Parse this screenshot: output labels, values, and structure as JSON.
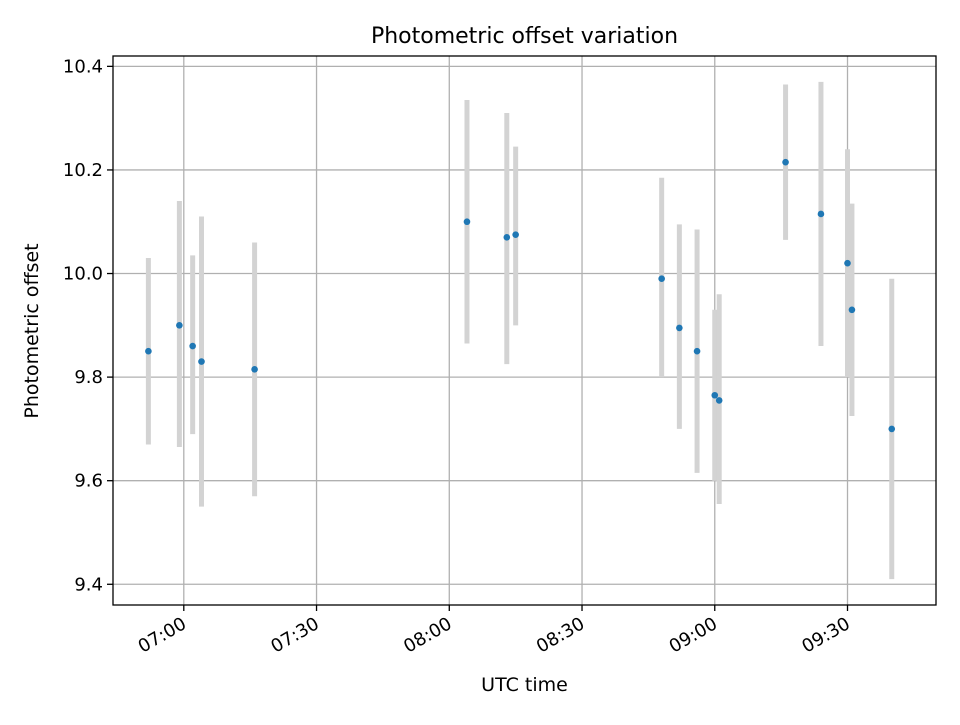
{
  "chart_data": {
    "type": "scatter",
    "title": "Photometric offset variation",
    "xlabel": "UTC time",
    "ylabel": "Photometric offset",
    "x_is_time": true,
    "xlim": [
      "06:44",
      "09:50"
    ],
    "ylim": [
      9.36,
      10.42
    ],
    "xticks": [
      "07:00",
      "07:30",
      "08:00",
      "08:30",
      "09:00",
      "09:30"
    ],
    "yticks": [
      "9.4",
      "9.6",
      "9.8",
      "10.0",
      "10.2",
      "10.4"
    ],
    "grid": true,
    "legend": "none",
    "marker_color": "#1f77b4",
    "errorbar_color": "#d3d3d3",
    "points": [
      {
        "x": "06:52",
        "y": 9.85,
        "ylow": 9.67,
        "yhigh": 10.03
      },
      {
        "x": "06:59",
        "y": 9.9,
        "ylow": 9.665,
        "yhigh": 10.14
      },
      {
        "x": "07:02",
        "y": 9.86,
        "ylow": 9.69,
        "yhigh": 10.035
      },
      {
        "x": "07:04",
        "y": 9.83,
        "ylow": 9.55,
        "yhigh": 10.11
      },
      {
        "x": "07:16",
        "y": 9.815,
        "ylow": 9.57,
        "yhigh": 10.06
      },
      {
        "x": "08:04",
        "y": 10.1,
        "ylow": 9.865,
        "yhigh": 10.335
      },
      {
        "x": "08:13",
        "y": 10.07,
        "ylow": 9.825,
        "yhigh": 10.31
      },
      {
        "x": "08:15",
        "y": 10.075,
        "ylow": 9.9,
        "yhigh": 10.245
      },
      {
        "x": "08:48",
        "y": 9.99,
        "ylow": 9.8,
        "yhigh": 10.185
      },
      {
        "x": "08:52",
        "y": 9.895,
        "ylow": 9.7,
        "yhigh": 10.095
      },
      {
        "x": "08:56",
        "y": 9.85,
        "ylow": 9.615,
        "yhigh": 10.085
      },
      {
        "x": "09:00",
        "y": 9.765,
        "ylow": 9.6,
        "yhigh": 9.93
      },
      {
        "x": "09:01",
        "y": 9.755,
        "ylow": 9.555,
        "yhigh": 9.96
      },
      {
        "x": "09:16",
        "y": 10.215,
        "ylow": 10.065,
        "yhigh": 10.365
      },
      {
        "x": "09:24",
        "y": 10.115,
        "ylow": 9.86,
        "yhigh": 10.37
      },
      {
        "x": "09:30",
        "y": 10.02,
        "ylow": 9.8,
        "yhigh": 10.24
      },
      {
        "x": "09:31",
        "y": 9.93,
        "ylow": 9.725,
        "yhigh": 10.135
      },
      {
        "x": "09:40",
        "y": 9.7,
        "ylow": 9.41,
        "yhigh": 9.99
      }
    ]
  }
}
